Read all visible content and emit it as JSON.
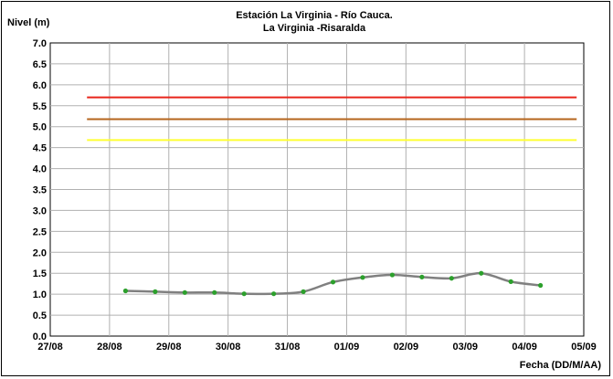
{
  "chart_data": {
    "type": "line",
    "title": "Estación La Virginia  - Río Cauca.",
    "subtitle": "La Virginia -Risaralda",
    "ylabel": "Nivel (m)",
    "xlabel": "Fecha (DD/M/AA)",
    "x_ticks": [
      "27/08",
      "28/08",
      "29/08",
      "30/08",
      "31/08",
      "01/09",
      "02/09",
      "03/09",
      "04/09",
      "05/09"
    ],
    "ylim": [
      0,
      7
    ],
    "y_ticks": [
      "0.0",
      "0.5",
      "1.0",
      "1.5",
      "2.0",
      "2.5",
      "3.0",
      "3.5",
      "4.0",
      "4.5",
      "5.0",
      "5.5",
      "6.0",
      "6.5",
      "7.0"
    ],
    "grid": true,
    "thresholds": [
      {
        "value": 5.7,
        "color": "#e8251a"
      },
      {
        "value": 5.18,
        "color": "#b5651d"
      },
      {
        "value": 4.68,
        "color": "#ffff33"
      }
    ],
    "threshold_x_range": [
      0.62,
      8.88
    ],
    "series": [
      {
        "color": "#808080",
        "marker_color": "#2ca02c",
        "points": [
          [
            1.27,
            1.08
          ],
          [
            1.77,
            1.06
          ],
          [
            2.27,
            1.04
          ],
          [
            2.77,
            1.04
          ],
          [
            3.27,
            1.01
          ],
          [
            3.77,
            1.01
          ],
          [
            4.27,
            1.06
          ],
          [
            4.77,
            1.29
          ],
          [
            5.27,
            1.4
          ],
          [
            5.77,
            1.46
          ],
          [
            6.27,
            1.41
          ],
          [
            6.77,
            1.38
          ],
          [
            7.27,
            1.5
          ],
          [
            7.77,
            1.3
          ],
          [
            8.27,
            1.21
          ]
        ]
      }
    ]
  }
}
